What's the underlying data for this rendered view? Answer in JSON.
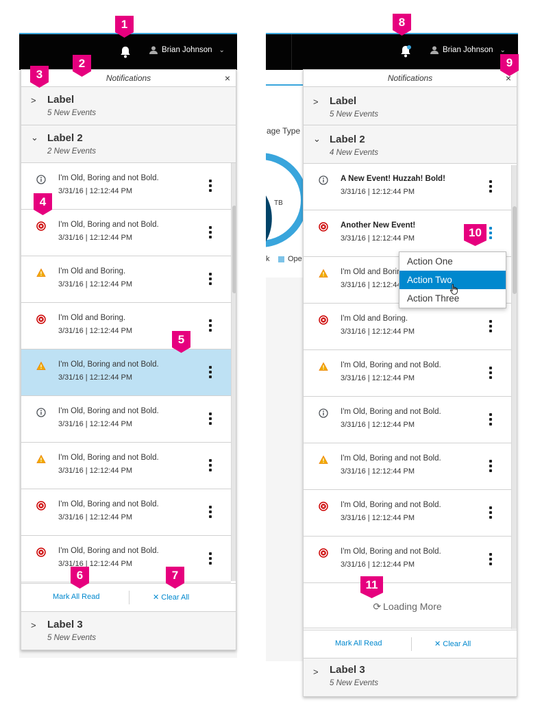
{
  "header": {
    "username": "Brian Johnson"
  },
  "panel": {
    "title": "Notifications",
    "close_symbol": "×"
  },
  "left": {
    "drawers": [
      {
        "label": "Label",
        "count_text": "5 New Events"
      },
      {
        "label": "Label 2",
        "count_text": "2 New Events"
      },
      {
        "label": "Label 3",
        "count_text": "5 New Events"
      }
    ],
    "items": [
      {
        "status": "info",
        "message": "I'm Old, Boring and not Bold.",
        "timestamp": "3/31/16  |  12:12:44 PM"
      },
      {
        "status": "error",
        "message": "I'm Old, Boring and not Bold.",
        "timestamp": "3/31/16  |  12:12:44 PM"
      },
      {
        "status": "warning",
        "message": "I'm Old and Boring.",
        "timestamp": "3/31/16  |  12:12:44 PM"
      },
      {
        "status": "error",
        "message": "I'm Old and Boring.",
        "timestamp": "3/31/16  |  12:12:44 PM"
      },
      {
        "status": "warning",
        "message": "I'm Old, Boring and not Bold.",
        "timestamp": "3/31/16  |  12:12:44 PM",
        "selected": true
      },
      {
        "status": "info",
        "message": "I'm Old, Boring and not Bold.",
        "timestamp": "3/31/16  |  12:12:44 PM"
      },
      {
        "status": "warning",
        "message": "I'm Old, Boring and not Bold.",
        "timestamp": "3/31/16  |  12:12:44 PM"
      },
      {
        "status": "error",
        "message": "I'm Old, Boring and not Bold.",
        "timestamp": "3/31/16  |  12:12:44 PM"
      },
      {
        "status": "error",
        "message": "I'm Old, Boring and not Bold.",
        "timestamp": "3/31/16  |  12:12:44 PM"
      }
    ]
  },
  "right": {
    "drawers": [
      {
        "label": "Label",
        "count_text": "5 New Events"
      },
      {
        "label": "Label 2",
        "count_text": "4 New Events"
      },
      {
        "label": "Label 3",
        "count_text": "5 New Events"
      }
    ],
    "items": [
      {
        "status": "info",
        "message": "A New Event! Huzzah! Bold!",
        "timestamp": "3/31/16  |  12:12:44 PM",
        "bold": true
      },
      {
        "status": "error",
        "message": "Another New Event!",
        "timestamp": "3/31/16  |  12:12:44 PM",
        "bold": true
      },
      {
        "status": "warning",
        "message": "I'm Old and Boring.",
        "timestamp": "3/31/16  |  12:12:44 PM"
      },
      {
        "status": "error",
        "message": "I'm Old and Boring.",
        "timestamp": "3/31/16  |  12:12:44 PM"
      },
      {
        "status": "warning",
        "message": "I'm Old, Boring and not Bold.",
        "timestamp": "3/31/16  |  12:12:44 PM"
      },
      {
        "status": "info",
        "message": "I'm Old, Boring and not Bold.",
        "timestamp": "3/31/16  |  12:12:44 PM"
      },
      {
        "status": "warning",
        "message": "I'm Old, Boring and not Bold.",
        "timestamp": "3/31/16  |  12:12:44 PM"
      },
      {
        "status": "error",
        "message": "I'm Old, Boring and not Bold.",
        "timestamp": "3/31/16  |  12:12:44 PM"
      },
      {
        "status": "error",
        "message": "I'm Old, Boring and not Bold.",
        "timestamp": "3/31/16  |  12:12:44 PM"
      }
    ],
    "loading_text": "Loading More",
    "dropdown": [
      "Action One",
      "Action Two",
      "Action Three"
    ],
    "background_text": {
      "storage_type": "age Type",
      "tb": "TB",
      "legend": "Ope",
      "k": "k"
    }
  },
  "footer": {
    "mark_all_read": "Mark All Read",
    "clear_all": "Clear All",
    "clear_icon": "✕"
  },
  "callouts": [
    "1",
    "2",
    "3",
    "4",
    "5",
    "6",
    "7",
    "8",
    "9",
    "10",
    "11"
  ],
  "colors": {
    "callout": "#e6007e",
    "accent_blue": "#0088ce",
    "selected_row": "#bee1f4",
    "error": "#cc0000",
    "warning": "#ec7a08",
    "info": "#4d5258"
  }
}
